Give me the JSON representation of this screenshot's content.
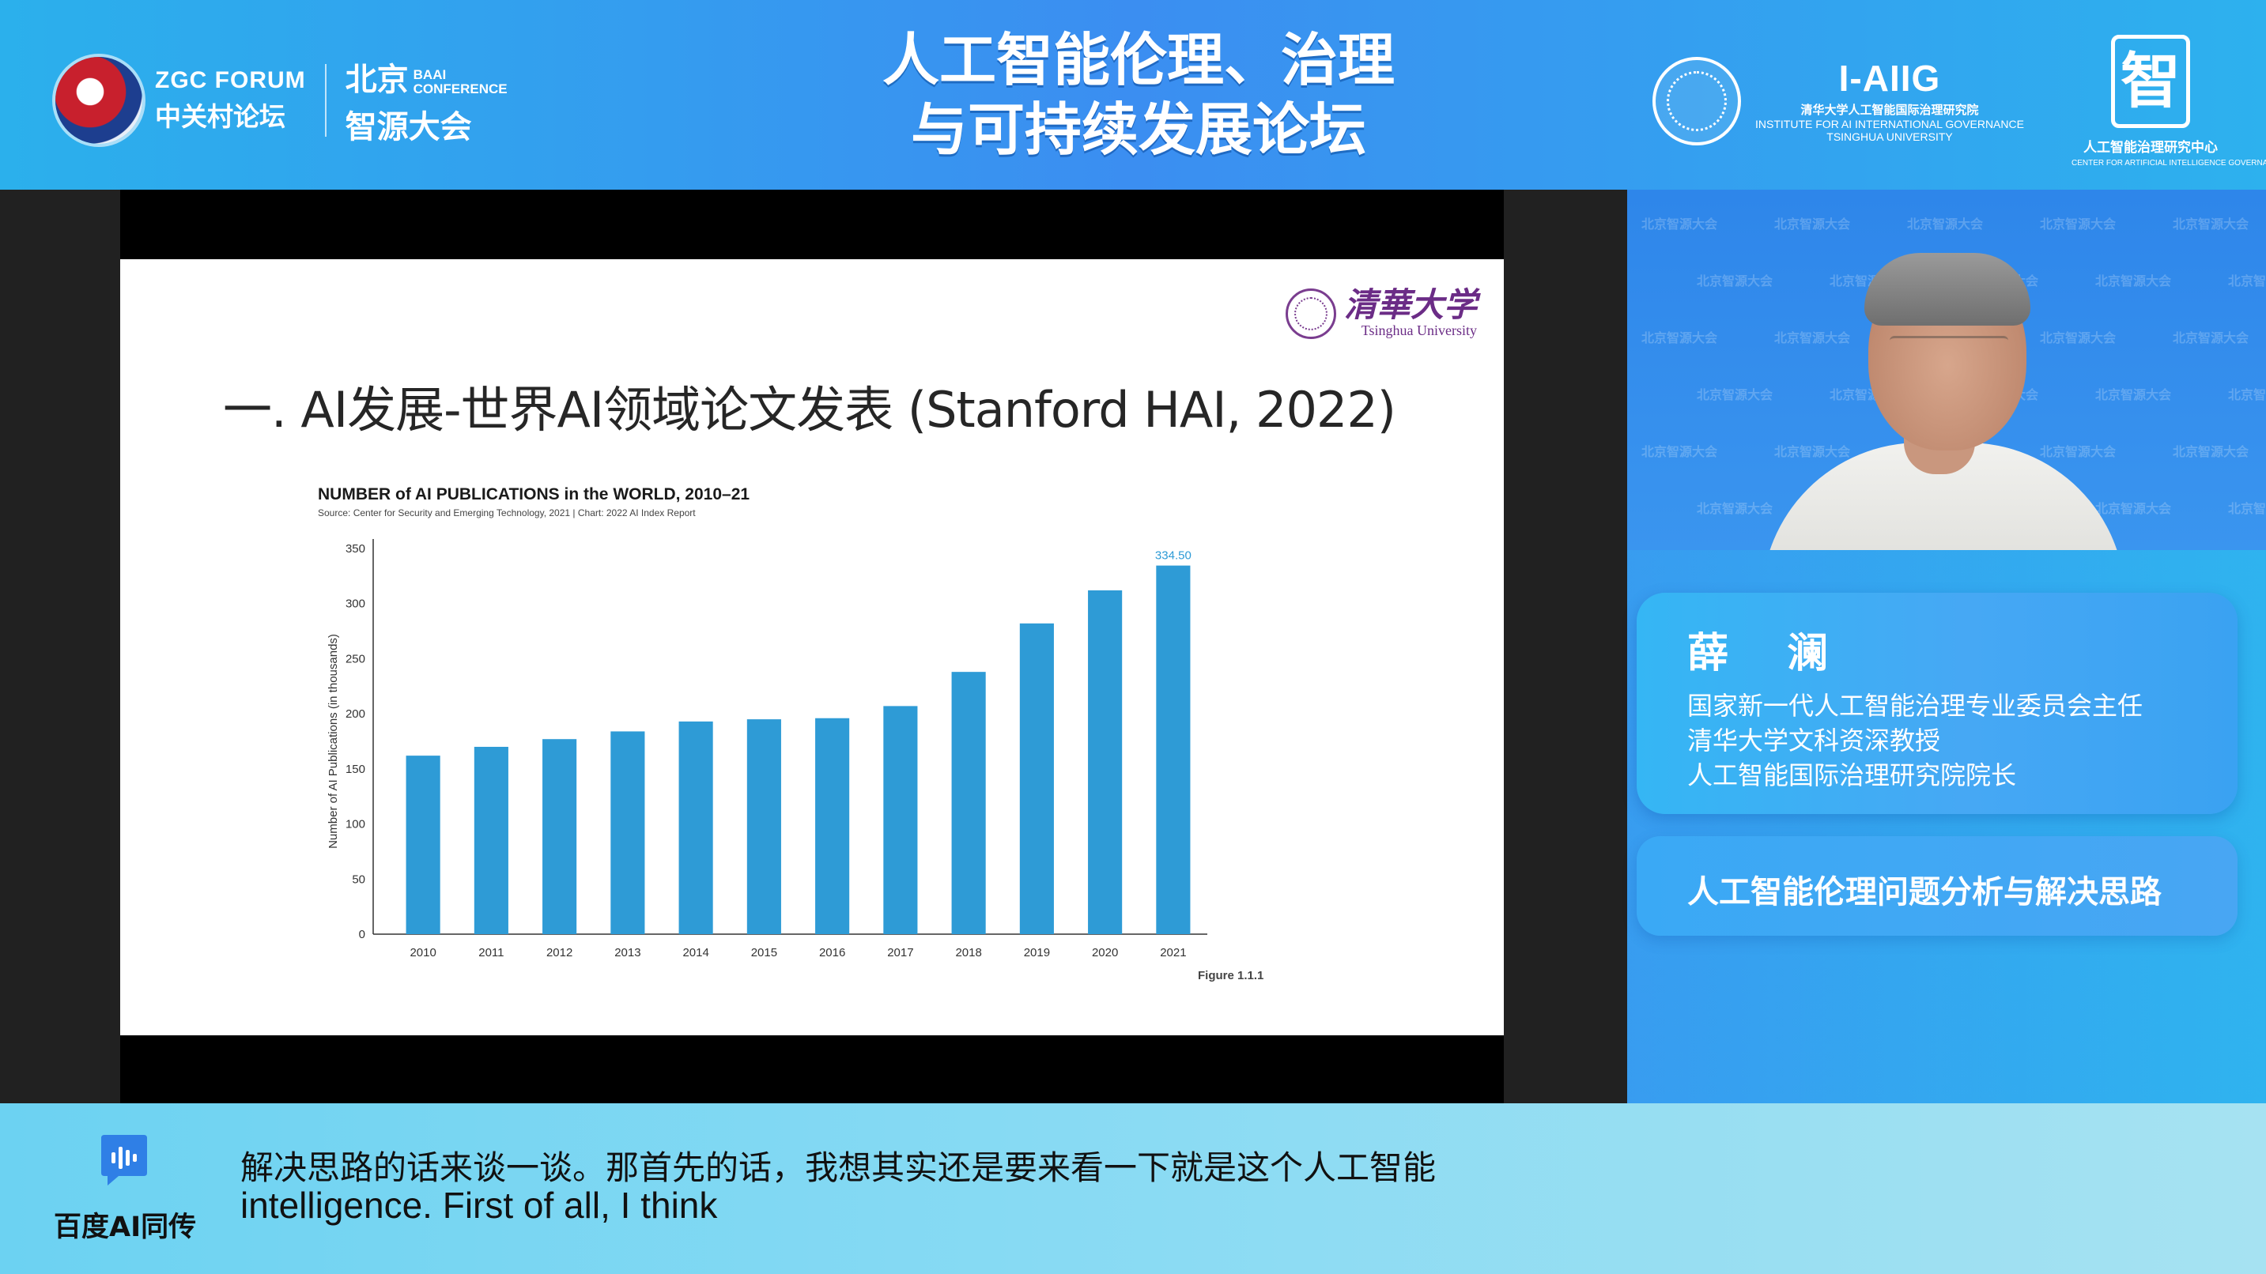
{
  "header": {
    "zgc_forum_en": "ZGC FORUM",
    "zgc_forum_cn": "中关村论坛",
    "baai_cn_line1": "北京",
    "baai_en_small_line1": "BAAI",
    "baai_en_small_line2": "CONFERENCE",
    "baai_cn_line2": "智源大会",
    "forum_title_line1": "人工智能伦理、治理",
    "forum_title_line2": "与可持续发展论坛",
    "aiig_logo": "I-AIIG",
    "aiig_cn": "清华大学人工智能国际治理研究院",
    "aiig_en_line1": "INSTITUTE FOR AI INTERNATIONAL GOVERNANCE",
    "aiig_en_line2": "TSINGHUA UNIVERSITY",
    "center_mark": "智",
    "center_cn": "人工智能治理研究中心",
    "center_en": "CENTER FOR ARTIFICIAL INTELLIGENCE GOVERNANCE"
  },
  "slide": {
    "logo_cn": "清華大学",
    "logo_en": "Tsinghua University",
    "title": "一. AI发展-世界AI领域论文发表 (Stanford HAI, 2022)",
    "figure_label": "Figure 1.1.1"
  },
  "chart_data": {
    "type": "bar",
    "title": "NUMBER of AI PUBLICATIONS in the WORLD, 2010–21",
    "subtitle": "Source: Center for Security and Emerging Technology, 2021 | Chart: 2022 AI Index Report",
    "ylabel": "Number of AI Publications (in thousands)",
    "xlabel": "",
    "categories": [
      "2010",
      "2011",
      "2012",
      "2013",
      "2014",
      "2015",
      "2016",
      "2017",
      "2018",
      "2019",
      "2020",
      "2021"
    ],
    "values": [
      162,
      170,
      177,
      184,
      193,
      195,
      196,
      207,
      238,
      282,
      312,
      334.5
    ],
    "ylim": [
      0,
      350
    ],
    "yticks": [
      0,
      50,
      100,
      150,
      200,
      250,
      300,
      350
    ],
    "data_labels": [
      {
        "index": 11,
        "text": "334.50"
      }
    ],
    "grid": false,
    "bar_color": "#2e9bd6"
  },
  "speaker": {
    "name": "薛  澜",
    "title_line1": "国家新一代人工智能治理专业委员会主任",
    "title_line2": "清华大学文科资深教授",
    "title_line3": "人工智能国际治理研究院院长",
    "talk_topic": "人工智能伦理问题分析与解决思路",
    "watermark_text": "北京智源大会"
  },
  "subtitle": {
    "brand": "百度AI同传",
    "chinese": "解决思路的话来谈一谈。那首先的话，我想其实还是要来看一下就是这个人工智能",
    "english": "intelligence. First of all, I think"
  },
  "colors": {
    "header_blue": "#3b8ef1",
    "bar_blue": "#2e9bd6",
    "card_blue": "#35b6f4",
    "subtitle_bg": "#87daf3"
  }
}
